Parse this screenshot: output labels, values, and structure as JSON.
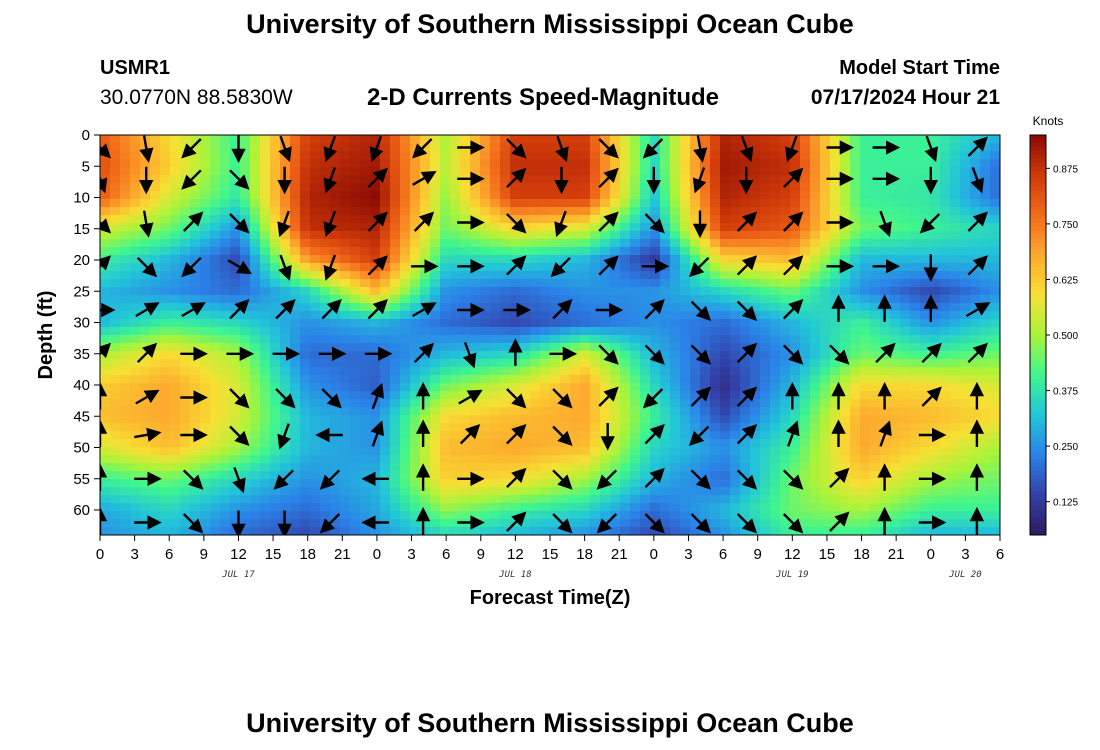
{
  "header": {
    "title": "University of Southern Mississippi Ocean Cube",
    "station_id": "USMR1",
    "station_coords": "30.0770N  88.5830W",
    "subtitle": "2-D Currents Speed-Magnitude",
    "model_start_label": "Model Start Time",
    "model_start_time": "07/17/2024 Hour 21"
  },
  "footer": {
    "title": "University of Southern Mississippi Ocean Cube"
  },
  "colors": {
    "colormap": [
      "#2d1b5e",
      "#3340a8",
      "#2b82e8",
      "#22c6d8",
      "#3ff58f",
      "#a9f43a",
      "#f7e034",
      "#fda92e",
      "#f26a1a",
      "#cf3a0a",
      "#8a0a03"
    ]
  },
  "chart_data": {
    "type": "heatmap",
    "title": "2-D Currents Speed-Magnitude",
    "xlabel": "Forecast Time(Z)",
    "ylabel": "Depth (ft)",
    "x_ticks": [
      "0",
      "3",
      "6",
      "9",
      "12",
      "15",
      "18",
      "21",
      "0",
      "3",
      "6",
      "9",
      "12",
      "15",
      "18",
      "21",
      "0",
      "3",
      "6",
      "9",
      "12",
      "15",
      "18",
      "21",
      "0",
      "3",
      "6"
    ],
    "x_range_hours": [
      0,
      78
    ],
    "date_labels": [
      {
        "label": "JUL 17",
        "hour": 12
      },
      {
        "label": "JUL 18",
        "hour": 36
      },
      {
        "label": "JUL 19",
        "hour": 60
      },
      {
        "label": "JUL 20",
        "hour": 75
      }
    ],
    "y_ticks": [
      0,
      5,
      10,
      15,
      20,
      25,
      30,
      35,
      40,
      45,
      50,
      55,
      60
    ],
    "y_range_ft": [
      0,
      64
    ],
    "colorbar": {
      "unit": "Knots",
      "ticks": [
        "0.125",
        "0.250",
        "0.375",
        "0.500",
        "0.625",
        "0.750",
        "0.875"
      ],
      "range": [
        0.05,
        0.95
      ]
    },
    "time_hours": [
      0,
      6,
      12,
      18,
      24,
      30,
      36,
      42,
      48,
      54,
      60,
      66,
      72,
      78
    ],
    "depth_ft": [
      0,
      5,
      10,
      15,
      20,
      25,
      30,
      35,
      40,
      45,
      50,
      55,
      60,
      64
    ],
    "speed_knots": [
      [
        0.8,
        0.6,
        0.4,
        0.85,
        0.9,
        0.5,
        0.85,
        0.85,
        0.35,
        0.9,
        0.85,
        0.4,
        0.4,
        0.3
      ],
      [
        0.82,
        0.62,
        0.4,
        0.88,
        0.92,
        0.52,
        0.88,
        0.88,
        0.35,
        0.92,
        0.88,
        0.4,
        0.4,
        0.2
      ],
      [
        0.8,
        0.55,
        0.38,
        0.9,
        0.95,
        0.48,
        0.85,
        0.85,
        0.32,
        0.9,
        0.85,
        0.4,
        0.38,
        0.2
      ],
      [
        0.55,
        0.45,
        0.25,
        0.88,
        0.9,
        0.45,
        0.6,
        0.55,
        0.25,
        0.85,
        0.8,
        0.45,
        0.4,
        0.35
      ],
      [
        0.4,
        0.3,
        0.15,
        0.7,
        0.85,
        0.35,
        0.35,
        0.3,
        0.12,
        0.6,
        0.65,
        0.3,
        0.3,
        0.3
      ],
      [
        0.3,
        0.25,
        0.2,
        0.35,
        0.65,
        0.25,
        0.2,
        0.25,
        0.25,
        0.35,
        0.45,
        0.25,
        0.15,
        0.25
      ],
      [
        0.3,
        0.4,
        0.35,
        0.25,
        0.3,
        0.2,
        0.15,
        0.2,
        0.25,
        0.2,
        0.3,
        0.4,
        0.25,
        0.35
      ],
      [
        0.5,
        0.6,
        0.5,
        0.2,
        0.2,
        0.3,
        0.35,
        0.55,
        0.3,
        0.15,
        0.25,
        0.45,
        0.4,
        0.45
      ],
      [
        0.62,
        0.68,
        0.55,
        0.25,
        0.18,
        0.45,
        0.55,
        0.68,
        0.35,
        0.1,
        0.3,
        0.6,
        0.6,
        0.55
      ],
      [
        0.65,
        0.68,
        0.55,
        0.3,
        0.25,
        0.6,
        0.65,
        0.68,
        0.4,
        0.15,
        0.35,
        0.68,
        0.65,
        0.6
      ],
      [
        0.55,
        0.65,
        0.5,
        0.3,
        0.25,
        0.65,
        0.68,
        0.65,
        0.35,
        0.25,
        0.4,
        0.68,
        0.6,
        0.5
      ],
      [
        0.4,
        0.45,
        0.35,
        0.25,
        0.3,
        0.62,
        0.6,
        0.5,
        0.3,
        0.2,
        0.45,
        0.62,
        0.5,
        0.45
      ],
      [
        0.28,
        0.35,
        0.25,
        0.2,
        0.28,
        0.48,
        0.4,
        0.35,
        0.2,
        0.3,
        0.45,
        0.5,
        0.4,
        0.4
      ],
      [
        0.25,
        0.3,
        0.2,
        0.15,
        0.25,
        0.35,
        0.3,
        0.25,
        0.15,
        0.25,
        0.4,
        0.4,
        0.3,
        0.3
      ]
    ],
    "vectors": {
      "time_hours": [
        0,
        4,
        8,
        12,
        16,
        20,
        24,
        28,
        32,
        36,
        40,
        44,
        48,
        52,
        56,
        60,
        64,
        68,
        72,
        76
      ],
      "depth_ft": [
        2,
        7,
        14,
        21,
        28,
        35,
        42,
        48,
        55,
        62
      ],
      "directions_deg": [
        [
          135,
          170,
          225,
          180,
          160,
          200,
          200,
          225,
          90,
          135,
          160,
          135,
          225,
          170,
          160,
          200,
          90,
          90,
          160,
          45
        ],
        [
          160,
          180,
          225,
          135,
          180,
          200,
          45,
          60,
          90,
          45,
          180,
          45,
          180,
          200,
          180,
          45,
          90,
          90,
          180,
          160
        ],
        [
          135,
          170,
          45,
          135,
          200,
          200,
          45,
          45,
          90,
          135,
          200,
          45,
          135,
          180,
          45,
          45,
          90,
          160,
          225,
          45
        ],
        [
          45,
          135,
          225,
          120,
          160,
          200,
          45,
          90,
          90,
          45,
          225,
          45,
          90,
          225,
          45,
          45,
          90,
          90,
          180,
          45
        ],
        [
          90,
          60,
          60,
          45,
          45,
          45,
          45,
          60,
          90,
          90,
          45,
          90,
          45,
          135,
          135,
          45,
          0,
          0,
          0,
          60
        ],
        [
          45,
          45,
          90,
          90,
          90,
          90,
          90,
          45,
          160,
          0,
          90,
          135,
          135,
          135,
          45,
          135,
          135,
          45,
          45,
          45
        ],
        [
          0,
          60,
          90,
          135,
          135,
          135,
          20,
          0,
          60,
          135,
          135,
          45,
          225,
          45,
          45,
          0,
          0,
          0,
          45,
          0
        ],
        [
          0,
          80,
          90,
          135,
          200,
          270,
          20,
          0,
          45,
          45,
          135,
          180,
          45,
          225,
          45,
          20,
          0,
          20,
          90,
          0
        ],
        [
          0,
          90,
          135,
          160,
          225,
          225,
          270,
          0,
          90,
          45,
          135,
          225,
          45,
          135,
          135,
          135,
          45,
          0,
          90,
          0
        ],
        [
          0,
          90,
          135,
          180,
          180,
          225,
          270,
          0,
          90,
          45,
          135,
          225,
          135,
          135,
          135,
          135,
          45,
          0,
          90,
          0
        ]
      ]
    }
  }
}
